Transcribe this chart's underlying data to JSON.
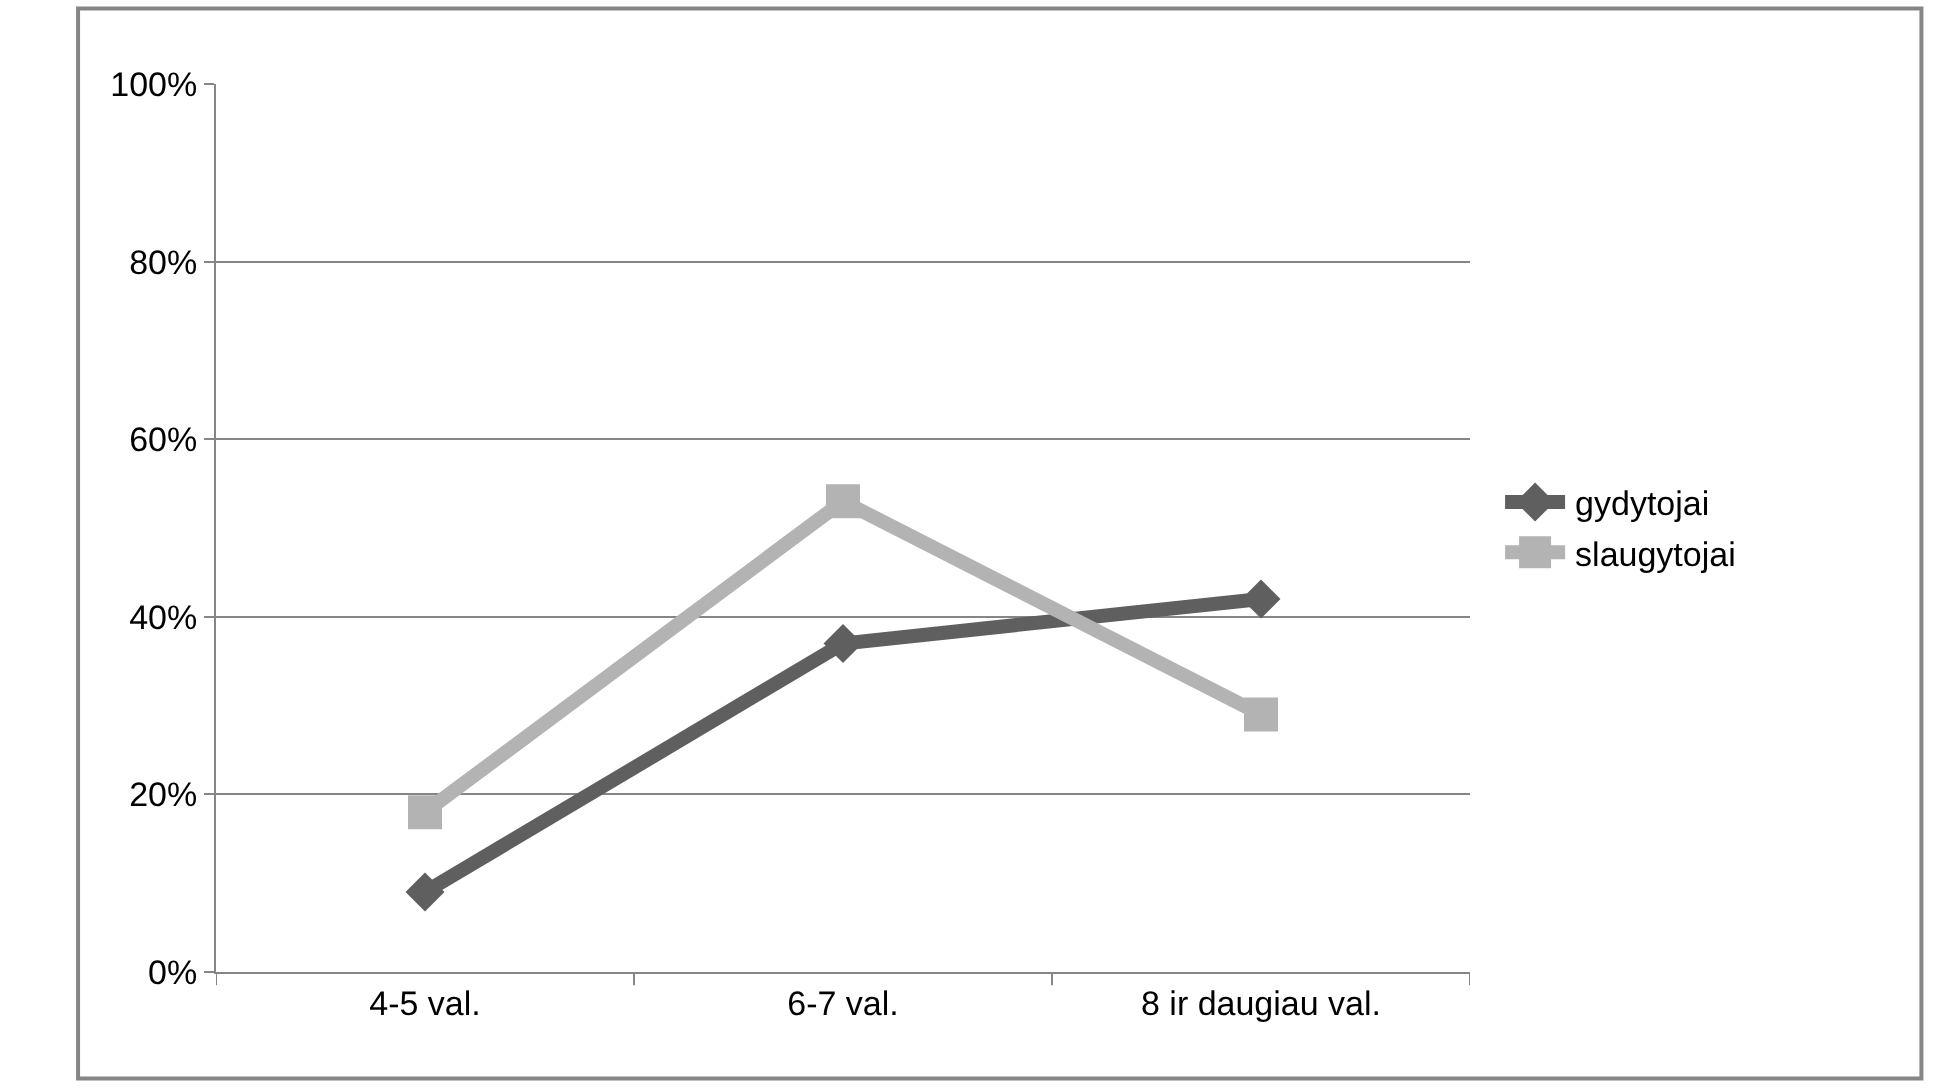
{
  "chart_data": {
    "type": "line",
    "categories": [
      "4-5 val.",
      "6-7 val.",
      "8 ir daugiau val."
    ],
    "series": [
      {
        "name": "gydytojai",
        "color": "#5f5f5f",
        "marker": "diamond",
        "values": [
          0.09,
          0.37,
          0.42
        ]
      },
      {
        "name": "slaugytojai",
        "color": "#b3b3b3",
        "marker": "square",
        "values": [
          0.18,
          0.53,
          0.29
        ]
      }
    ],
    "ylim": [
      0,
      1
    ],
    "yticks": [
      {
        "value": 0,
        "label": "0%"
      },
      {
        "value": 0.2,
        "label": "20%"
      },
      {
        "value": 0.4,
        "label": "40%"
      },
      {
        "value": 0.6,
        "label": "60%"
      },
      {
        "value": 0.8,
        "label": "80%"
      },
      {
        "value": 1,
        "label": "100%"
      }
    ],
    "grid": "y",
    "legend": "right",
    "line_style": "solid"
  }
}
